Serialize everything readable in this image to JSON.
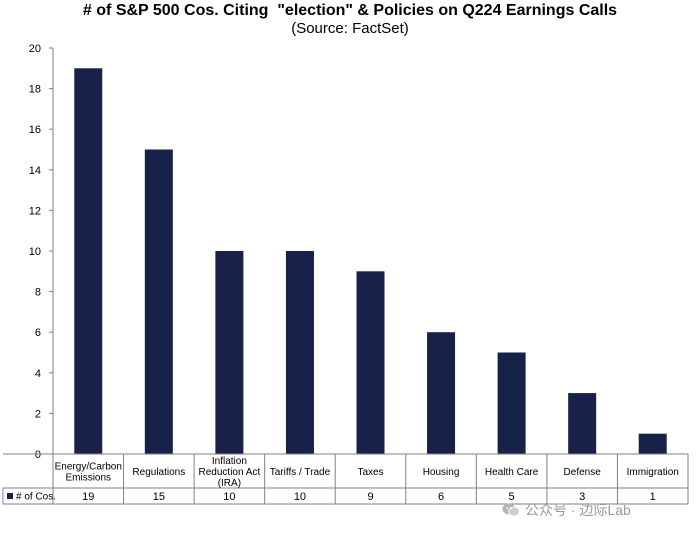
{
  "chart_data": {
    "type": "bar",
    "title": "# of S&P 500 Cos. Citing  \"election\" & Policies on Q224 Earnings Calls",
    "subtitle": "(Source: FactSet)",
    "categories": [
      [
        "Energy/Carbon",
        "Emissions"
      ],
      [
        "Regulations"
      ],
      [
        "Inflation",
        "Reduction Act",
        "(IRA)"
      ],
      [
        "Tariffs / Trade"
      ],
      [
        "Taxes"
      ],
      [
        "Housing"
      ],
      [
        "Health Care"
      ],
      [
        "Defense"
      ],
      [
        "Immigration"
      ]
    ],
    "series": [
      {
        "name": "# of Cos.",
        "values": [
          19,
          15,
          10,
          10,
          9,
          6,
          5,
          3,
          1
        ],
        "color": "#18214a"
      }
    ],
    "ylim": [
      0,
      20
    ],
    "yticks": [
      0,
      2,
      4,
      6,
      8,
      10,
      12,
      14,
      16,
      18,
      20
    ],
    "grid": false,
    "legend": "data-table-left"
  },
  "watermark": {
    "text": "公众号 · 边际Lab",
    "icon": "wechat-icon"
  }
}
